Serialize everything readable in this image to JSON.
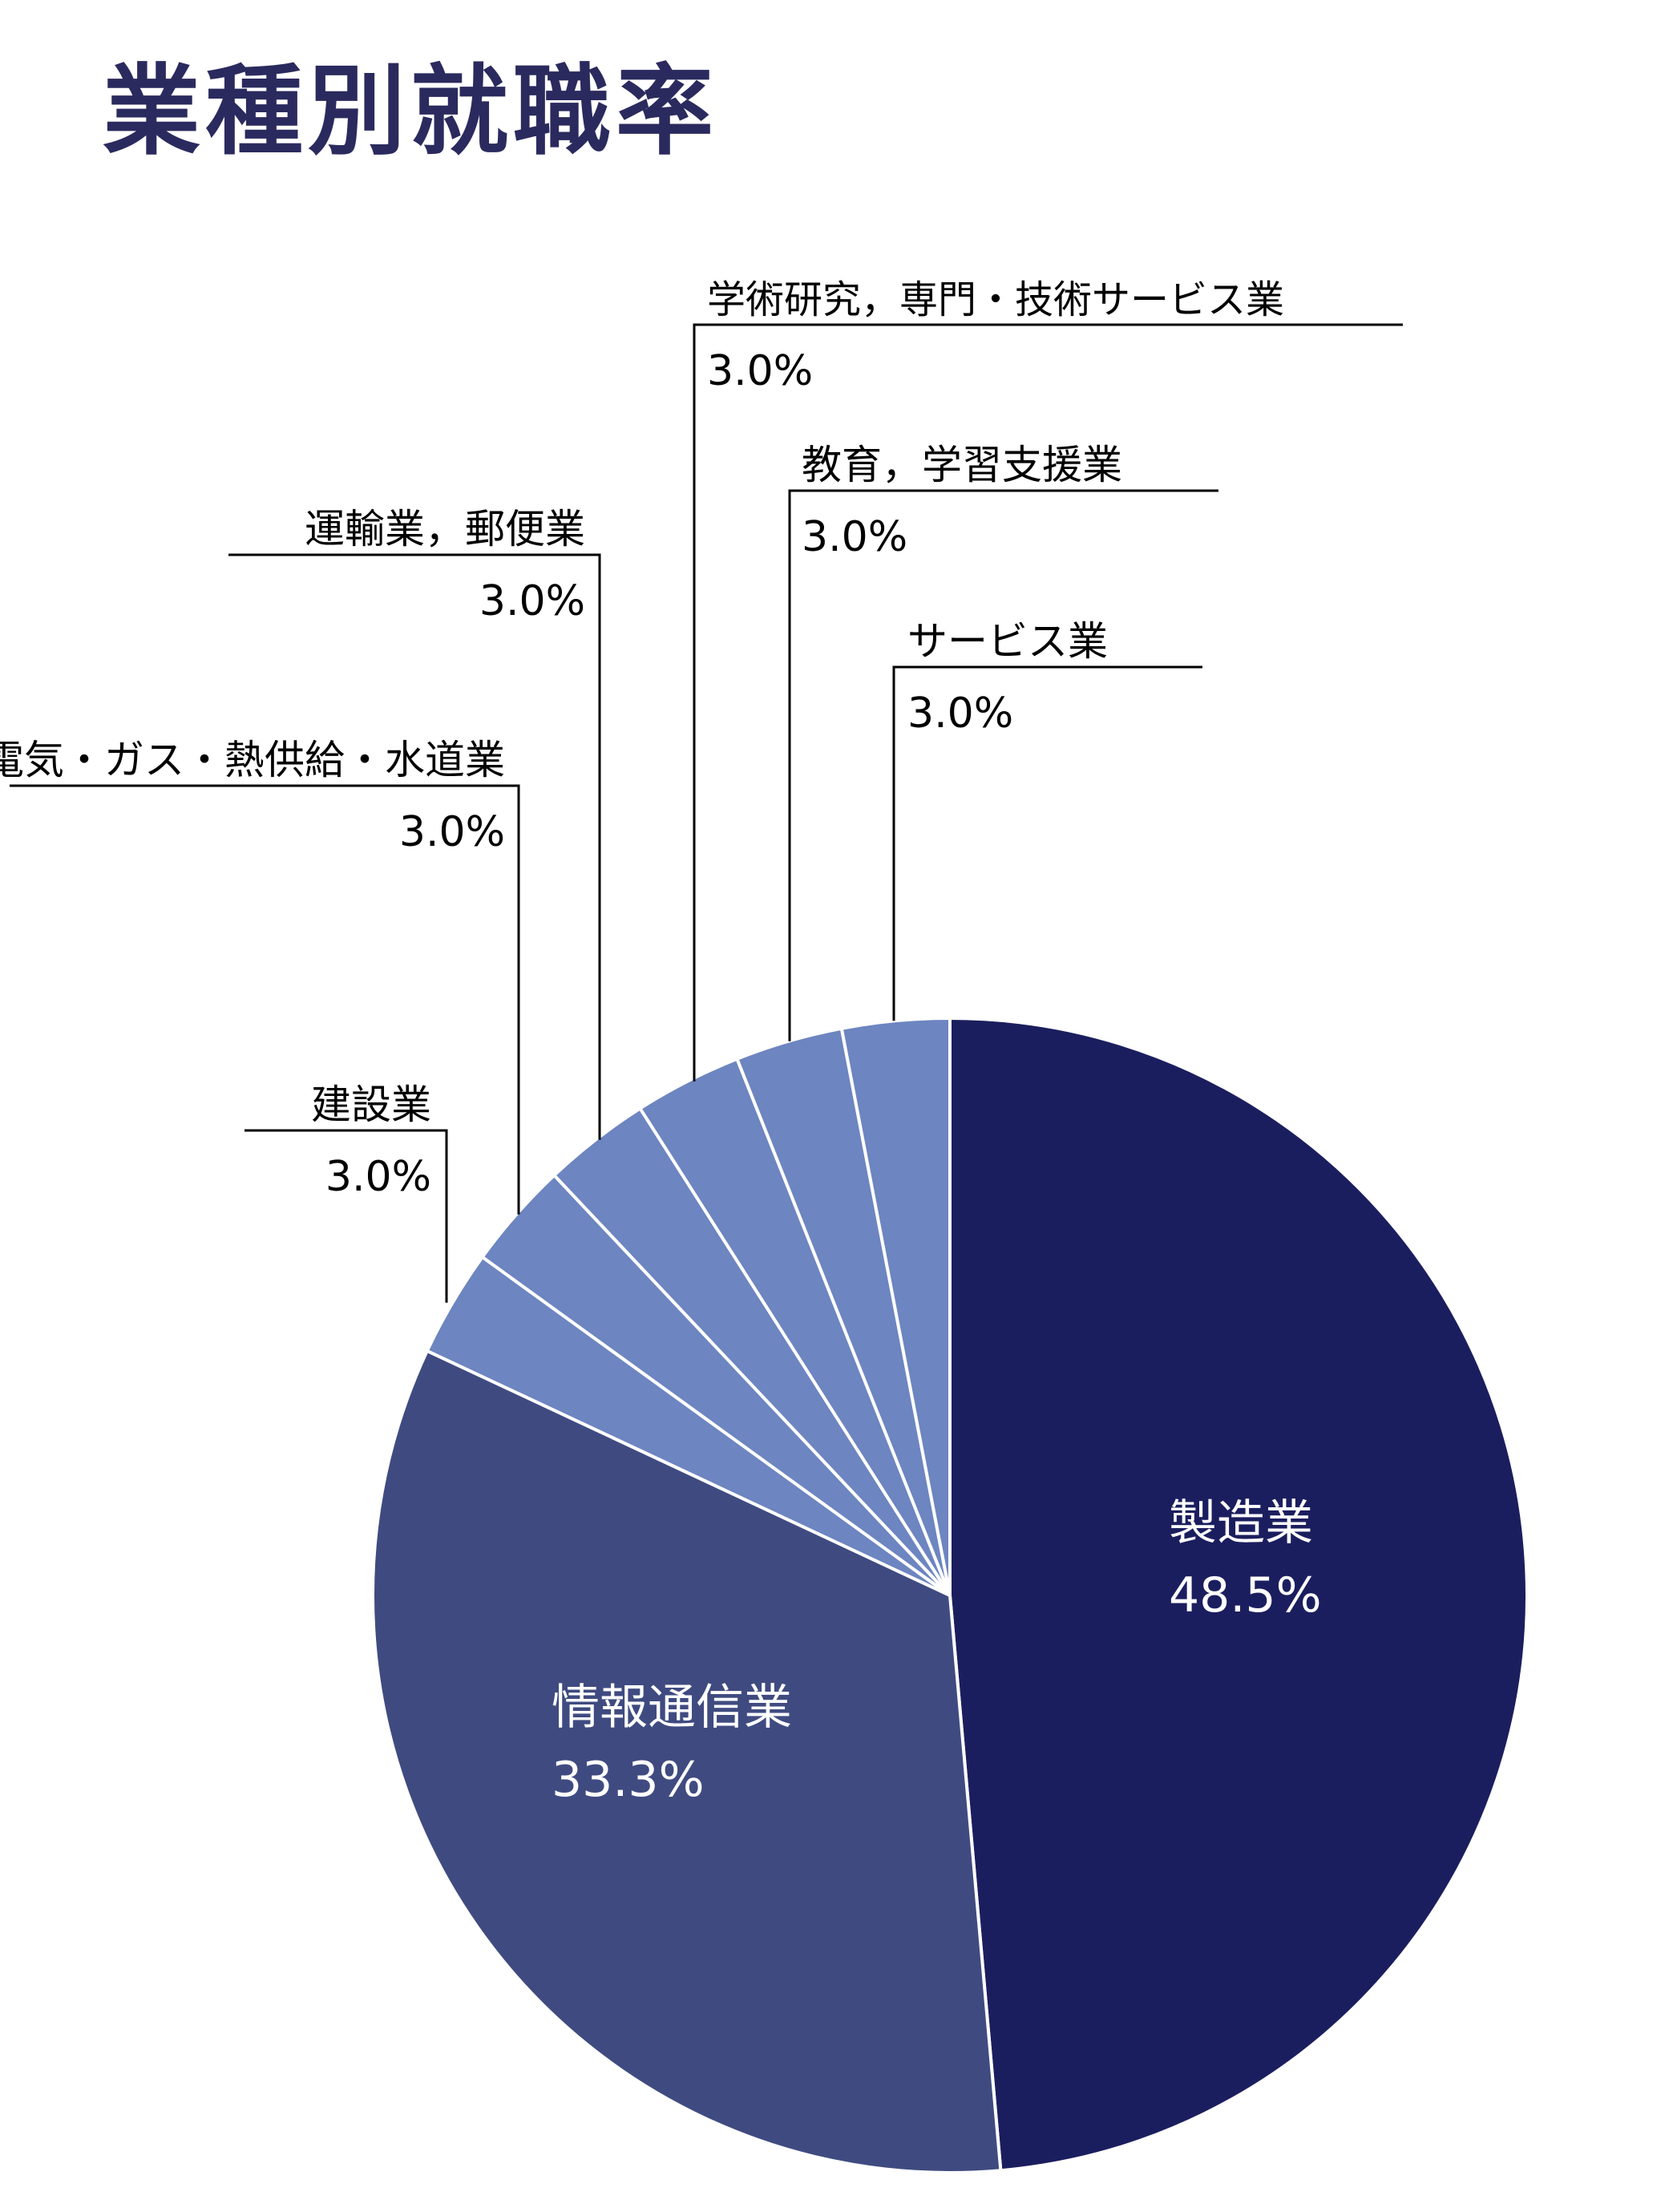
{
  "chart_data": {
    "type": "pie",
    "title": "業種別就職率",
    "slices": [
      {
        "label": "製造業",
        "value": 48.5,
        "display": "48.5%",
        "color": "#1b1e5e"
      },
      {
        "label": "情報通信業",
        "value": 33.3,
        "display": "33.3%",
        "color": "#3f4b80"
      },
      {
        "label": "建設業",
        "value": 3.0,
        "display": "3.0%",
        "color": "#6d85c0"
      },
      {
        "label": "電気・ガス・熱供給・水道業",
        "value": 3.0,
        "display": "3.0%",
        "color": "#6d85c0"
      },
      {
        "label": "運輸業，郵便業",
        "value": 3.0,
        "display": "3.0%",
        "color": "#6d85c0"
      },
      {
        "label": "学術研究，専門・技術サービス業",
        "value": 3.0,
        "display": "3.0%",
        "color": "#6d85c0"
      },
      {
        "label": "教育，学習支援業",
        "value": 3.0,
        "display": "3.0%",
        "color": "#6d85c0"
      },
      {
        "label": "サービス業",
        "value": 3.0,
        "display": "3.0%",
        "color": "#6d85c0"
      }
    ],
    "title_color": "#2b2a5e",
    "line_color": "#000000"
  }
}
